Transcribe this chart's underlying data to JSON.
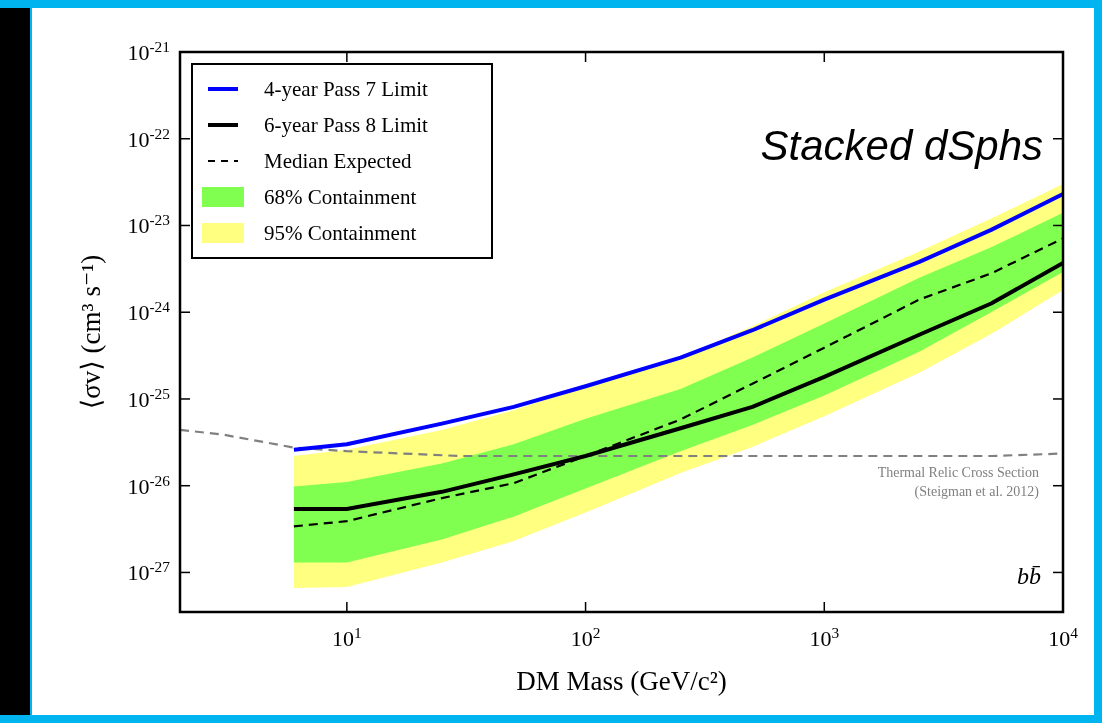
{
  "chart_data": {
    "type": "line",
    "xlabel": "DM Mass (GeV/c²)",
    "ylabel": "⟨σv⟩ (cm³ s⁻¹)",
    "log": "xy",
    "xlim": [
      2,
      10000
    ],
    "ylim": [
      3.5e-28,
      1e-21
    ],
    "xticks": [
      {
        "value": 10,
        "label": "10$^{1}$"
      },
      {
        "value": 100,
        "label": "10$^{2}$"
      },
      {
        "value": 1000,
        "label": "10$^{3}$"
      },
      {
        "value": 10000,
        "label": "10$^{4}$"
      }
    ],
    "yticks": [
      {
        "value": 1e-27,
        "label": "10$^{-27}$"
      },
      {
        "value": 1e-26,
        "label": "10$^{-26}$"
      },
      {
        "value": 1e-25,
        "label": "10$^{-25}$"
      },
      {
        "value": 1e-24,
        "label": "10$^{-24}$"
      },
      {
        "value": 1e-23,
        "label": "10$^{-23}$"
      },
      {
        "value": 1e-22,
        "label": "10$^{-22}$"
      },
      {
        "value": 1e-21,
        "label": "10$^{-21}$"
      }
    ],
    "grid": false,
    "legend": "top left",
    "annotations": [
      "Stacked dSphs",
      "Thermal Relic Cross Section",
      "(Steigman et al. 2012)",
      "bb̄"
    ],
    "series": [
      {
        "name": "95% Containment",
        "type": "area",
        "color": "#ffff80",
        "x": [
          6,
          10,
          25,
          50,
          100,
          250,
          500,
          1000,
          2500,
          5000,
          10000
        ],
        "values": [
          null,
          null,
          null,
          null,
          null,
          null,
          null,
          null,
          null,
          null,
          null
        ],
        "lower": [
          6.6e-28,
          6.8e-28,
          1.3e-27,
          2.3e-27,
          4.9e-27,
          1.4e-26,
          2.8e-26,
          6.3e-26,
          2e-25,
          5.6e-25,
          1.8e-24
        ],
        "upper": [
          2.2e-26,
          2.6e-26,
          4.4e-26,
          7.4e-26,
          1.4e-25,
          3e-25,
          6.9e-25,
          1.7e-24,
          5e-24,
          1.2e-23,
          3e-23
        ]
      },
      {
        "name": "68% Containment",
        "type": "area",
        "color": "#80ff50",
        "x": [
          6,
          10,
          25,
          50,
          100,
          250,
          500,
          1000,
          2500,
          5000,
          10000
        ],
        "values": [
          null,
          null,
          null,
          null,
          null,
          null,
          null,
          null,
          null,
          null,
          null
        ],
        "lower": [
          1.3e-27,
          1.3e-27,
          2.4e-27,
          4.4e-27,
          9.3e-27,
          2.5e-26,
          5e-26,
          1.1e-25,
          3.5e-25,
          1e-24,
          2.9e-24
        ],
        "upper": [
          9.8e-27,
          1.1e-26,
          1.8e-26,
          3e-26,
          5.9e-26,
          1.3e-25,
          3e-25,
          7.4e-25,
          2.5e-24,
          5.6e-24,
          1.4e-23
        ]
      },
      {
        "color": "#808080",
        "line_style": "dashed",
        "x": [
          2,
          3,
          6,
          10,
          30,
          100,
          1000,
          5000,
          10000
        ],
        "values": [
          4.4e-26,
          3.9e-26,
          2.75e-26,
          2.5e-26,
          2.2e-26,
          2.2e-26,
          2.2e-26,
          2.2e-26,
          2.35e-26
        ]
      },
      {
        "name": "Median Expected",
        "color": "#000000",
        "line_style": "dashed",
        "x": [
          6,
          10,
          25,
          50,
          100,
          250,
          500,
          1000,
          2500,
          5000,
          10000
        ],
        "values": [
          3.4e-27,
          3.9e-27,
          7.2e-27,
          1.07e-26,
          2.2e-26,
          5.8e-26,
          1.5e-25,
          3.9e-25,
          1.4e-24,
          2.8e-24,
          7.1e-24
        ]
      },
      {
        "name": "6-year Pass 8 Limit",
        "color": "#000000",
        "line_style": "solid",
        "x": [
          6,
          10,
          25,
          50,
          100,
          250,
          500,
          1000,
          2500,
          5000,
          10000
        ],
        "values": [
          5.4e-27,
          5.4e-27,
          8.5e-27,
          1.35e-26,
          2.2e-26,
          4.6e-26,
          8.1e-26,
          1.8e-25,
          5.5e-25,
          1.26e-24,
          3.7e-24
        ]
      },
      {
        "name": "4-year Pass 7 Limit",
        "color": "#0000ff",
        "line_style": "solid",
        "x": [
          6,
          10,
          25,
          50,
          100,
          250,
          500,
          1000,
          2500,
          5000,
          10000
        ],
        "values": [
          2.6e-26,
          3e-26,
          5.2e-26,
          8.1e-26,
          1.4e-25,
          3e-25,
          6.2e-25,
          1.4e-24,
          3.8e-24,
          8.9e-24,
          2.3e-23
        ]
      }
    ]
  }
}
